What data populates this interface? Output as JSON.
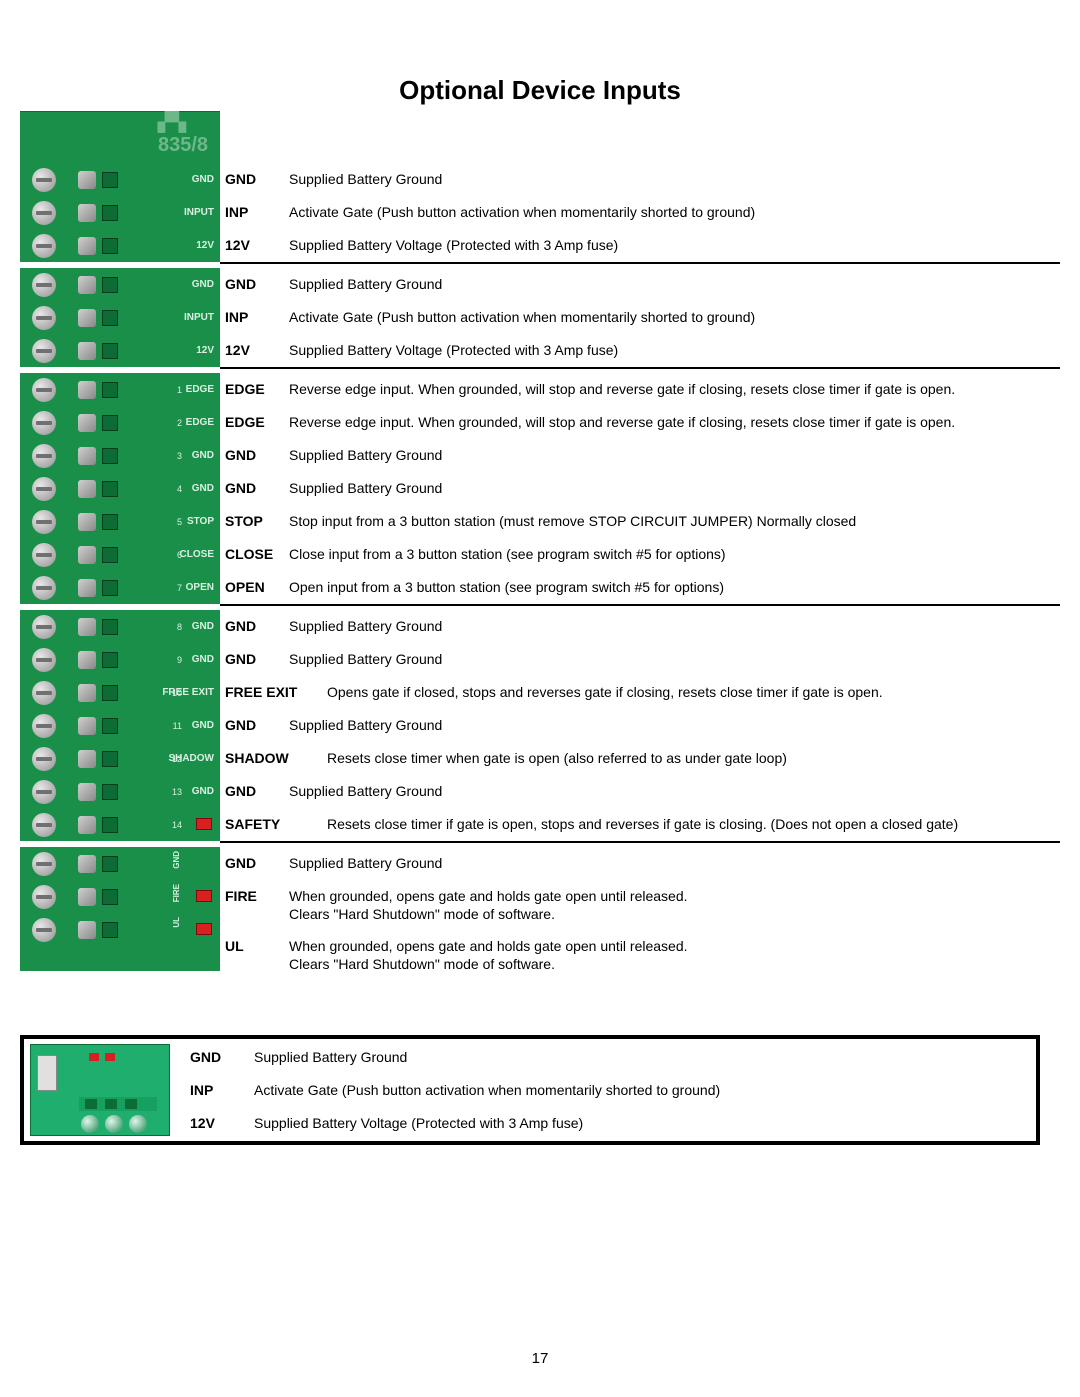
{
  "title": "Optional Device Inputs",
  "pcb_model": "835/8",
  "colors": {
    "pcb_green": "#1a8f4a",
    "pcb_dark": "#0d6b35",
    "pcb_light_text": "#d8f0e0",
    "red": "#d82020",
    "screw_light": "#e8e8e8",
    "screw_dark": "#909090",
    "bottom_pcb": "#1fae6e"
  },
  "sections": [
    {
      "pins": [
        {
          "pcb": "GND",
          "label": "GND",
          "desc": "Supplied Battery Ground"
        },
        {
          "pcb": "INPUT",
          "label": "INP",
          "desc": "Activate Gate (Push button activation when momentarily shorted to ground)"
        },
        {
          "pcb": "12V",
          "label": "12V",
          "desc": "Supplied Battery Voltage (Protected with 3 Amp fuse)"
        }
      ]
    },
    {
      "pins": [
        {
          "pcb": "GND",
          "label": "GND",
          "desc": "Supplied Battery Ground"
        },
        {
          "pcb": "INPUT",
          "label": "INP",
          "desc": "Activate Gate (Push button activation when momentarily shorted to ground)"
        },
        {
          "pcb": "12V",
          "label": "12V",
          "desc": "Supplied Battery Voltage (Protected with 3 Amp fuse)"
        }
      ]
    },
    {
      "pins": [
        {
          "num": "1",
          "pcb": "EDGE",
          "label": "EDGE",
          "desc": "Reverse edge input. When grounded, will stop and reverse gate if closing, resets close timer if gate is open."
        },
        {
          "num": "2",
          "pcb": "EDGE",
          "label": "EDGE",
          "desc": "Reverse edge input. When grounded, will stop and reverse gate if closing, resets close timer if gate is open."
        },
        {
          "num": "3",
          "pcb": "GND",
          "label": "GND",
          "desc": "Supplied Battery Ground"
        },
        {
          "num": "4",
          "pcb": "GND",
          "label": "GND",
          "desc": "Supplied Battery Ground"
        },
        {
          "num": "5",
          "pcb": "STOP",
          "label": "STOP",
          "desc": "Stop input from a 3 button station (must remove STOP CIRCUIT JUMPER) Normally closed"
        },
        {
          "num": "6",
          "pcb": "CLOSE",
          "label": "CLOSE",
          "desc": "Close input from a 3 button station (see program switch #5 for options)"
        },
        {
          "num": "7",
          "pcb": "OPEN",
          "label": "OPEN",
          "desc": "Open input from a 3 button station (see program switch #5 for options)"
        }
      ]
    },
    {
      "pins": [
        {
          "num": "8",
          "pcb": "GND",
          "label": "GND",
          "desc": "Supplied Battery Ground"
        },
        {
          "num": "9",
          "pcb": "GND",
          "label": "GND",
          "desc": "Supplied Battery Ground"
        },
        {
          "num": "10",
          "pcb": "FREE EXIT",
          "label": "FREE EXIT",
          "desc": "Opens gate if closed, stops and reverses gate if closing, resets close timer if gate is open.",
          "wide": true
        },
        {
          "num": "11",
          "pcb": "GND",
          "label": "GND",
          "desc": "Supplied Battery Ground"
        },
        {
          "num": "12",
          "pcb": "SHADOW",
          "label": "SHADOW",
          "desc": "Resets close timer when gate is open (also referred to as under gate loop)",
          "wide": true
        },
        {
          "num": "13",
          "pcb": "GND",
          "label": "GND",
          "desc": "Supplied Battery Ground"
        },
        {
          "num": "14",
          "pcb": "",
          "label": "SAFETY",
          "desc": "Resets close timer if gate is open, stops and reverses if gate is closing. (Does not open a closed gate)",
          "wide": true,
          "red": true
        }
      ]
    },
    {
      "pins": [
        {
          "pcb": "GND",
          "label": "GND",
          "desc": "Supplied Battery Ground",
          "vertical": true
        },
        {
          "pcb": "FIRE",
          "label": "FIRE",
          "desc": "When grounded, opens gate and holds gate open until released.\nClears \"Hard Shutdown\" mode of  software.",
          "red": true,
          "vertical": true
        },
        {
          "pcb": "UL",
          "label": "UL",
          "desc": "When grounded, opens gate and holds gate open until released.\nClears \"Hard Shutdown\" mode of  software.",
          "red": true,
          "vertical": true
        }
      ],
      "tail_height": 25
    }
  ],
  "bottom_box": {
    "rows": [
      {
        "label": "GND",
        "desc": "Supplied Battery Ground"
      },
      {
        "label": "INP",
        "desc": "Activate Gate (Push button activation when momentarily shorted to ground)"
      },
      {
        "label": "12V",
        "desc": "Supplied Battery Voltage (Protected with 3 Amp fuse)"
      }
    ]
  },
  "page_number": "17"
}
